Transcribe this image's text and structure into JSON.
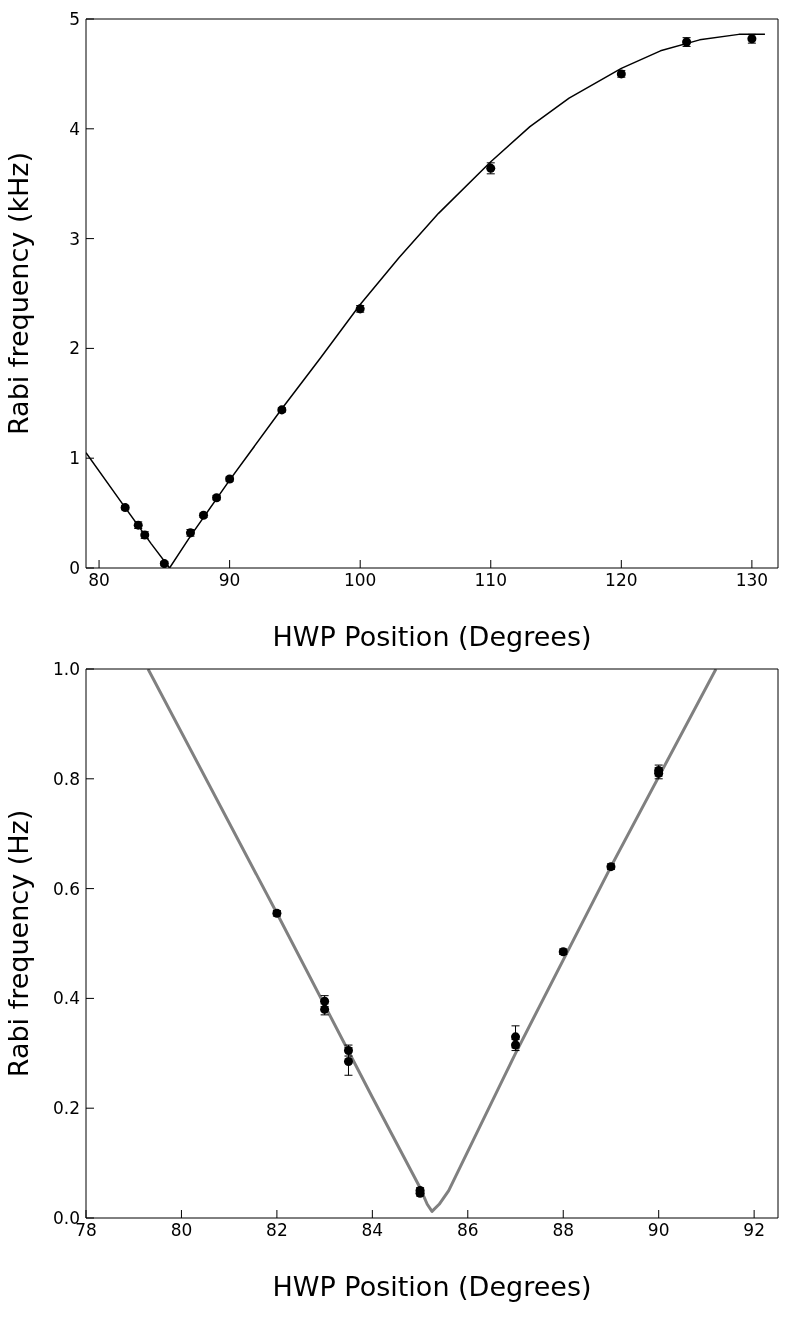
{
  "chart_data": [
    {
      "type": "scatter",
      "xlabel": "HWP Position (Degrees)",
      "ylabel": "Rabi frequency (kHz)",
      "xlim": [
        79,
        132
      ],
      "ylim": [
        0,
        5
      ],
      "xticks": [
        80,
        90,
        100,
        110,
        120,
        130
      ],
      "yticks": [
        0,
        1,
        2,
        3,
        4,
        5
      ],
      "series": [
        {
          "color": "#000000",
          "marker": "circle",
          "x": [
            82,
            83,
            83.5,
            85,
            87,
            88,
            89,
            90,
            94,
            100,
            110,
            120,
            125,
            130
          ],
          "values": [
            0.55,
            0.39,
            0.3,
            0.04,
            0.32,
            0.48,
            0.64,
            0.81,
            1.44,
            2.36,
            3.64,
            4.5,
            4.79,
            4.82
          ],
          "errors": [
            0.02,
            0.03,
            0.03,
            0.02,
            0.03,
            0.02,
            0.02,
            0.02,
            0.02,
            0.03,
            0.05,
            0.03,
            0.04,
            0.04
          ]
        },
        {
          "type": "line",
          "color": "#000000",
          "line_style": "solid",
          "x": [
            79,
            82,
            84,
            85.4,
            87,
            90,
            94,
            97,
            100,
            103,
            106,
            110,
            113,
            116,
            120,
            123,
            126,
            129,
            131
          ],
          "values": [
            1.05,
            0.55,
            0.22,
            0,
            0.29,
            0.8,
            1.45,
            1.92,
            2.4,
            2.83,
            3.23,
            3.7,
            4.02,
            4.28,
            4.55,
            4.71,
            4.81,
            4.86,
            4.86
          ]
        }
      ]
    },
    {
      "type": "scatter",
      "xlabel": "HWP Position (Degrees)",
      "ylabel": "Rabi frequency (Hz)",
      "xlim": [
        78,
        92.5
      ],
      "ylim": [
        0,
        1
      ],
      "xticks": [
        78,
        80,
        82,
        84,
        86,
        88,
        90,
        92
      ],
      "yticks": [
        {
          "value": 0,
          "label": "0.0"
        },
        0.2,
        0.4,
        0.6,
        0.8,
        {
          "value": 1,
          "label": "1.0"
        }
      ],
      "series": [
        {
          "color": "#000000",
          "marker": "circle",
          "x": [
            82,
            83,
            83,
            83.5,
            83.5,
            85,
            85,
            87,
            87,
            88,
            89,
            90,
            90
          ],
          "values": [
            0.555,
            0.395,
            0.38,
            0.305,
            0.285,
            0.05,
            0.045,
            0.33,
            0.315,
            0.485,
            0.64,
            0.815,
            0.81
          ],
          "errors": [
            0.005,
            0.01,
            0.01,
            0.01,
            0.025,
            0.005,
            0.005,
            0.02,
            0.01,
            0.005,
            0.005,
            0.01,
            0.01
          ]
        },
        {
          "type": "line",
          "color": "#808080",
          "line_style": "solid",
          "x": [
            79.3,
            82,
            84,
            85,
            85.15,
            85.25,
            85.4,
            85.6,
            87,
            89,
            91.2
          ],
          "values": [
            1,
            0.555,
            0.22,
            0.055,
            0.025,
            0.012,
            0.025,
            0.05,
            0.3,
            0.64,
            1
          ]
        }
      ]
    }
  ]
}
